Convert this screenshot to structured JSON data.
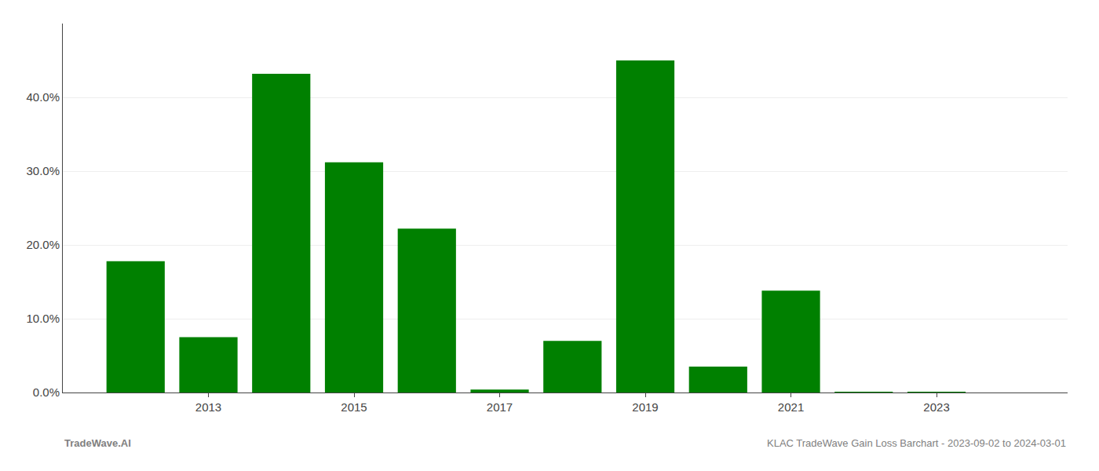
{
  "chart_data": {
    "type": "bar",
    "x": [
      2012,
      2013,
      2014,
      2015,
      2016,
      2017,
      2018,
      2019,
      2020,
      2021,
      2022,
      2023
    ],
    "values": [
      0.178,
      0.075,
      0.432,
      0.312,
      0.222,
      0.004,
      0.07,
      0.45,
      0.035,
      0.138,
      0.001,
      0.001
    ],
    "color": "#008000",
    "xlim": [
      2011.0,
      2024.8
    ],
    "xticks": [
      2013,
      2015,
      2017,
      2019,
      2021,
      2023
    ],
    "ylim": [
      0,
      0.5
    ],
    "yticks": [
      {
        "value": 0.0,
        "label": "0.0%"
      },
      {
        "value": 0.1,
        "label": "10.0%"
      },
      {
        "value": 0.2,
        "label": "20.0%"
      },
      {
        "value": 0.3,
        "label": "30.0%"
      },
      {
        "value": 0.4,
        "label": "40.0%"
      }
    ],
    "grid": true,
    "annotations": [
      "TradeWave.AI",
      "KLAC TradeWave Gain Loss Barchart - 2023-09-02 to 2024-03-01"
    ]
  }
}
